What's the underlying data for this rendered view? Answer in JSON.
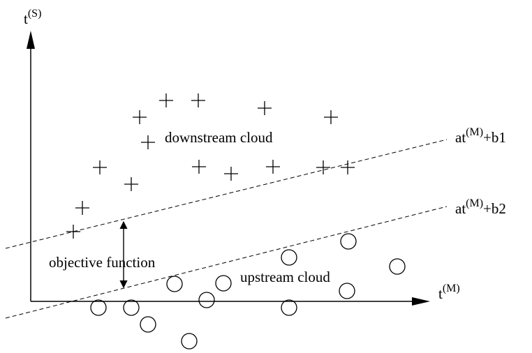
{
  "axes": {
    "y_label": "t",
    "y_label_sup": "(S)",
    "x_label": "t",
    "x_label_sup": "(M)"
  },
  "lines": [
    {
      "id": "line-b1",
      "prefix": "at",
      "sup": "(M)",
      "suffix": "+b1"
    },
    {
      "id": "line-b2",
      "prefix": "at",
      "sup": "(M)",
      "suffix": "+b2"
    }
  ],
  "clouds": {
    "downstream": {
      "label": "downstream cloud",
      "marker": "plus"
    },
    "upstream": {
      "label": "upstream cloud",
      "marker": "circle"
    }
  },
  "annotation": {
    "label": "objective function"
  },
  "colors": {
    "stroke": "#000000",
    "background": "#ffffff"
  }
}
